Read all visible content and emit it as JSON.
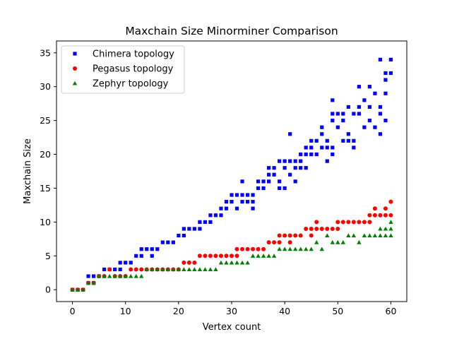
{
  "chart_data": {
    "type": "scatter",
    "title": "Maxchain Size Minorminer Comparison",
    "xlabel": "Vertex count",
    "ylabel": "Maxchain Size",
    "xlim": [
      -3,
      63
    ],
    "ylim": [
      -1.75,
      36.75
    ],
    "xticks": [
      0,
      10,
      20,
      30,
      40,
      50,
      60
    ],
    "yticks": [
      0,
      5,
      10,
      15,
      20,
      25,
      30,
      35
    ],
    "grid": false,
    "legend": "top-left",
    "series": [
      {
        "name": "Chimera topology",
        "color": "#0000ff",
        "marker": "square",
        "points": [
          [
            0,
            0
          ],
          [
            1,
            0
          ],
          [
            2,
            0
          ],
          [
            3,
            1
          ],
          [
            3,
            2
          ],
          [
            4,
            1
          ],
          [
            4,
            2
          ],
          [
            5,
            2
          ],
          [
            6,
            3
          ],
          [
            7,
            3
          ],
          [
            8,
            3
          ],
          [
            9,
            3
          ],
          [
            9,
            4
          ],
          [
            10,
            4
          ],
          [
            11,
            4
          ],
          [
            12,
            5
          ],
          [
            13,
            5
          ],
          [
            13,
            6
          ],
          [
            14,
            6
          ],
          [
            15,
            5
          ],
          [
            15,
            6
          ],
          [
            16,
            6
          ],
          [
            17,
            7
          ],
          [
            18,
            7
          ],
          [
            19,
            7
          ],
          [
            20,
            8
          ],
          [
            21,
            8
          ],
          [
            21,
            9
          ],
          [
            22,
            9
          ],
          [
            23,
            9
          ],
          [
            24,
            9
          ],
          [
            24,
            10
          ],
          [
            25,
            10
          ],
          [
            26,
            10
          ],
          [
            26,
            11
          ],
          [
            27,
            11
          ],
          [
            28,
            11
          ],
          [
            28,
            12
          ],
          [
            29,
            12
          ],
          [
            29,
            13
          ],
          [
            30,
            13
          ],
          [
            30,
            14
          ],
          [
            31,
            14
          ],
          [
            31,
            12
          ],
          [
            32,
            13
          ],
          [
            32,
            14
          ],
          [
            32,
            16
          ],
          [
            33,
            14
          ],
          [
            33,
            13
          ],
          [
            34,
            12
          ],
          [
            34,
            13
          ],
          [
            34,
            14
          ],
          [
            35,
            16
          ],
          [
            35,
            15
          ],
          [
            36,
            15
          ],
          [
            36,
            16
          ],
          [
            37,
            16
          ],
          [
            37,
            17
          ],
          [
            37,
            18
          ],
          [
            38,
            17
          ],
          [
            38,
            18
          ],
          [
            39,
            16
          ],
          [
            39,
            15
          ],
          [
            39,
            19
          ],
          [
            40,
            18
          ],
          [
            40,
            19
          ],
          [
            40,
            15
          ],
          [
            41,
            19
          ],
          [
            41,
            23
          ],
          [
            41,
            17
          ],
          [
            42,
            18
          ],
          [
            42,
            19
          ],
          [
            42,
            16
          ],
          [
            43,
            19
          ],
          [
            43,
            20
          ],
          [
            43,
            18
          ],
          [
            44,
            20
          ],
          [
            44,
            18
          ],
          [
            44,
            21
          ],
          [
            45,
            21
          ],
          [
            45,
            22
          ],
          [
            45,
            20
          ],
          [
            46,
            22
          ],
          [
            46,
            20
          ],
          [
            47,
            23
          ],
          [
            47,
            24
          ],
          [
            47,
            21
          ],
          [
            48,
            21
          ],
          [
            48,
            22
          ],
          [
            48,
            19
          ],
          [
            49,
            20
          ],
          [
            49,
            21
          ],
          [
            49,
            25
          ],
          [
            49,
            26
          ],
          [
            49,
            28
          ],
          [
            50,
            24
          ],
          [
            50,
            26
          ],
          [
            51,
            25
          ],
          [
            51,
            22
          ],
          [
            51,
            26
          ],
          [
            52,
            27
          ],
          [
            52,
            22
          ],
          [
            52,
            23
          ],
          [
            53,
            21
          ],
          [
            53,
            22
          ],
          [
            53,
            26
          ],
          [
            54,
            30
          ],
          [
            54,
            27
          ],
          [
            54,
            26
          ],
          [
            55,
            28
          ],
          [
            55,
            24
          ],
          [
            56,
            25
          ],
          [
            56,
            30
          ],
          [
            56,
            27
          ],
          [
            57,
            24
          ],
          [
            57,
            29
          ],
          [
            58,
            23
          ],
          [
            58,
            34
          ],
          [
            58,
            26
          ],
          [
            58,
            27
          ],
          [
            59,
            25
          ],
          [
            59,
            29
          ],
          [
            59,
            32
          ],
          [
            59,
            31
          ],
          [
            60,
            34
          ],
          [
            60,
            32
          ]
        ]
      },
      {
        "name": "Pegasus topology",
        "color": "#ff0000",
        "marker": "circle",
        "points": [
          [
            0,
            0
          ],
          [
            1,
            0
          ],
          [
            2,
            0
          ],
          [
            3,
            1
          ],
          [
            4,
            1
          ],
          [
            5,
            2
          ],
          [
            6,
            2
          ],
          [
            7,
            3
          ],
          [
            8,
            2
          ],
          [
            9,
            2
          ],
          [
            10,
            2
          ],
          [
            11,
            3
          ],
          [
            12,
            3
          ],
          [
            13,
            3
          ],
          [
            14,
            3
          ],
          [
            15,
            3
          ],
          [
            16,
            3
          ],
          [
            17,
            3
          ],
          [
            18,
            3
          ],
          [
            19,
            3
          ],
          [
            20,
            3
          ],
          [
            21,
            4
          ],
          [
            22,
            4
          ],
          [
            23,
            4
          ],
          [
            24,
            5
          ],
          [
            25,
            5
          ],
          [
            26,
            5
          ],
          [
            27,
            5
          ],
          [
            28,
            5
          ],
          [
            29,
            5
          ],
          [
            30,
            5
          ],
          [
            31,
            5
          ],
          [
            31,
            6
          ],
          [
            32,
            6
          ],
          [
            33,
            6
          ],
          [
            34,
            6
          ],
          [
            35,
            6
          ],
          [
            36,
            6
          ],
          [
            37,
            7
          ],
          [
            38,
            7
          ],
          [
            39,
            7
          ],
          [
            39,
            8
          ],
          [
            40,
            8
          ],
          [
            41,
            7
          ],
          [
            41,
            8
          ],
          [
            42,
            8
          ],
          [
            43,
            8
          ],
          [
            44,
            9
          ],
          [
            45,
            8
          ],
          [
            45,
            9
          ],
          [
            46,
            10
          ],
          [
            46,
            9
          ],
          [
            47,
            9
          ],
          [
            48,
            9
          ],
          [
            49,
            9
          ],
          [
            50,
            10
          ],
          [
            50,
            9
          ],
          [
            51,
            10
          ],
          [
            52,
            10
          ],
          [
            53,
            10
          ],
          [
            54,
            10
          ],
          [
            55,
            10
          ],
          [
            56,
            11
          ],
          [
            56,
            10
          ],
          [
            57,
            12
          ],
          [
            57,
            11
          ],
          [
            58,
            11
          ],
          [
            59,
            11
          ],
          [
            59,
            12
          ],
          [
            60,
            11
          ],
          [
            60,
            13
          ]
        ]
      },
      {
        "name": "Zephyr topology",
        "color": "#008000",
        "marker": "triangle",
        "points": [
          [
            0,
            0
          ],
          [
            1,
            0
          ],
          [
            2,
            0
          ],
          [
            3,
            1
          ],
          [
            4,
            1
          ],
          [
            5,
            2
          ],
          [
            6,
            2
          ],
          [
            7,
            2
          ],
          [
            8,
            2
          ],
          [
            9,
            2
          ],
          [
            10,
            2
          ],
          [
            11,
            2
          ],
          [
            12,
            2
          ],
          [
            13,
            2
          ],
          [
            14,
            3
          ],
          [
            15,
            3
          ],
          [
            16,
            3
          ],
          [
            17,
            3
          ],
          [
            18,
            3
          ],
          [
            19,
            3
          ],
          [
            20,
            3
          ],
          [
            21,
            3
          ],
          [
            22,
            3
          ],
          [
            23,
            3
          ],
          [
            24,
            3
          ],
          [
            25,
            3
          ],
          [
            26,
            3
          ],
          [
            27,
            3
          ],
          [
            28,
            4
          ],
          [
            29,
            4
          ],
          [
            30,
            4
          ],
          [
            31,
            4
          ],
          [
            32,
            4
          ],
          [
            33,
            4
          ],
          [
            34,
            5
          ],
          [
            35,
            5
          ],
          [
            36,
            5
          ],
          [
            37,
            5
          ],
          [
            38,
            5
          ],
          [
            39,
            6
          ],
          [
            40,
            6
          ],
          [
            41,
            6
          ],
          [
            42,
            6
          ],
          [
            43,
            6
          ],
          [
            44,
            6
          ],
          [
            45,
            6
          ],
          [
            46,
            7
          ],
          [
            47,
            6
          ],
          [
            48,
            8
          ],
          [
            49,
            7
          ],
          [
            50,
            7
          ],
          [
            51,
            7
          ],
          [
            52,
            8
          ],
          [
            53,
            8
          ],
          [
            54,
            7
          ],
          [
            55,
            8
          ],
          [
            56,
            8
          ],
          [
            57,
            8
          ],
          [
            58,
            8
          ],
          [
            58,
            9
          ],
          [
            59,
            8
          ],
          [
            59,
            9
          ],
          [
            60,
            8
          ],
          [
            60,
            9
          ],
          [
            60,
            10
          ]
        ]
      }
    ]
  }
}
